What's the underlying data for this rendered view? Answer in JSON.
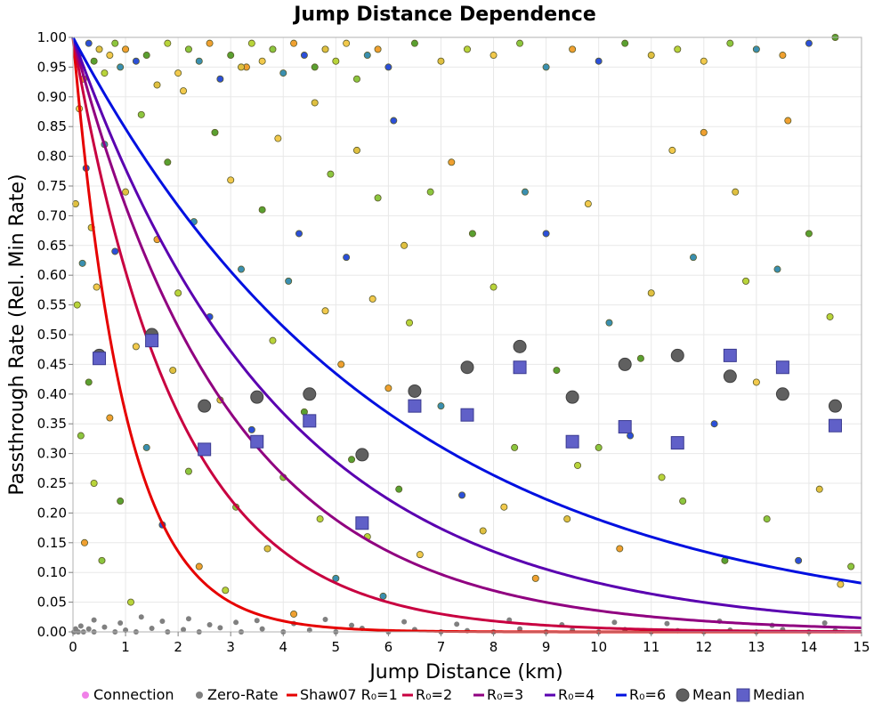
{
  "chart_data": {
    "type": "scatter",
    "title": "Jump Distance Dependence",
    "xlabel": "Jump Distance (km)",
    "ylabel": "Passthrough Rate (Rel. Min Rate)",
    "xlim": [
      0,
      15
    ],
    "ylim": [
      0,
      1
    ],
    "x_ticks": [
      "0",
      "1",
      "2",
      "3",
      "4",
      "5",
      "6",
      "7",
      "8",
      "9",
      "10",
      "11",
      "12",
      "13",
      "14",
      "15"
    ],
    "y_ticks": [
      "0.00",
      "0.05",
      "0.10",
      "0.15",
      "0.20",
      "0.25",
      "0.30",
      "0.35",
      "0.40",
      "0.45",
      "0.50",
      "0.55",
      "0.60",
      "0.65",
      "0.70",
      "0.75",
      "0.80",
      "0.85",
      "0.90",
      "0.95",
      "1.00"
    ],
    "grid": true,
    "legend_position": "bottom",
    "legend": [
      {
        "label": "Connection",
        "marker": "dot",
        "color": "#f080e8"
      },
      {
        "label": "Zero-Rate",
        "marker": "dot",
        "color": "#808080"
      },
      {
        "label": "Shaw07 R₀=1",
        "marker": "line",
        "color": "#e60000"
      },
      {
        "label": "R₀=2",
        "marker": "line",
        "color": "#c80040"
      },
      {
        "label": "R₀=3",
        "marker": "line",
        "color": "#900080"
      },
      {
        "label": "R₀=4",
        "marker": "line",
        "color": "#5a00b0"
      },
      {
        "label": "R₀=6",
        "marker": "line",
        "color": "#0010e0"
      },
      {
        "label": "Mean",
        "marker": "circle",
        "color": "#606060"
      },
      {
        "label": "Median",
        "marker": "square",
        "color": "#6060c8"
      }
    ],
    "curves": [
      {
        "name": "Shaw07 R₀=1",
        "R0": 1,
        "color": "#e60000"
      },
      {
        "name": "R₀=2",
        "R0": 2,
        "color": "#c80040"
      },
      {
        "name": "R₀=3",
        "R0": 3,
        "color": "#900080"
      },
      {
        "name": "R₀=4",
        "R0": 4,
        "color": "#5a00b0"
      },
      {
        "name": "R₀=6",
        "R0": 6,
        "color": "#0010e0"
      }
    ],
    "mean": {
      "x": [
        0.5,
        1.5,
        2.5,
        3.5,
        4.5,
        5.5,
        6.5,
        7.5,
        8.5,
        9.5,
        10.5,
        11.5,
        12.5,
        13.5,
        14.5
      ],
      "y": [
        0.465,
        0.5,
        0.38,
        0.395,
        0.4,
        0.298,
        0.405,
        0.445,
        0.48,
        0.395,
        0.45,
        0.465,
        0.43,
        0.4,
        0.38
      ]
    },
    "median": {
      "x": [
        0.5,
        1.5,
        2.5,
        3.5,
        4.5,
        5.5,
        6.5,
        7.5,
        8.5,
        9.5,
        10.5,
        11.5,
        12.5,
        13.5,
        14.5
      ],
      "y": [
        0.46,
        0.49,
        0.307,
        0.32,
        0.355,
        0.183,
        0.38,
        0.365,
        0.445,
        0.32,
        0.345,
        0.318,
        0.465,
        0.445,
        0.347
      ]
    },
    "connection_points": {
      "x": [
        0.05,
        0.08,
        0.12,
        0.15,
        0.18,
        0.22,
        0.25,
        0.3,
        0.35,
        0.4,
        0.45,
        0.55,
        0.6,
        0.7,
        0.8,
        0.9,
        1.0,
        1.1,
        1.2,
        1.3,
        1.4,
        1.6,
        1.7,
        1.8,
        1.9,
        2.0,
        2.1,
        2.2,
        2.3,
        2.4,
        2.6,
        2.7,
        2.8,
        2.9,
        3.0,
        3.1,
        3.2,
        3.3,
        3.4,
        3.6,
        3.7,
        3.8,
        3.9,
        4.0,
        4.1,
        4.2,
        4.3,
        4.4,
        4.6,
        4.7,
        4.8,
        4.9,
        5.0,
        5.1,
        5.2,
        5.3,
        5.4,
        5.6,
        5.7,
        5.8,
        5.9,
        6.0,
        6.1,
        6.2,
        6.3,
        6.4,
        6.6,
        6.8,
        7.0,
        7.2,
        7.4,
        7.6,
        7.8,
        8.0,
        8.2,
        8.4,
        8.6,
        8.8,
        9.0,
        9.2,
        9.4,
        9.6,
        9.8,
        10.0,
        10.2,
        10.4,
        10.6,
        10.8,
        11.0,
        11.2,
        11.4,
        11.6,
        11.8,
        12.0,
        12.2,
        12.4,
        12.6,
        12.8,
        13.0,
        13.2,
        13.4,
        13.6,
        13.8,
        14.0,
        14.2,
        14.4,
        14.6,
        14.8,
        0.1,
        0.2,
        0.3,
        0.4,
        0.5,
        0.6,
        0.7,
        0.8,
        0.9,
        1.0,
        1.2,
        1.4,
        1.6,
        1.8,
        2.0,
        2.2,
        2.4,
        2.6,
        2.8,
        3.0,
        3.2,
        3.4,
        3.6,
        3.8,
        4.0,
        4.2,
        4.4,
        4.6,
        4.8,
        5.0,
        5.2,
        5.4,
        5.6,
        5.8,
        6.0,
        6.5,
        7.0,
        7.5,
        8.0,
        8.5,
        9.0,
        9.5,
        10.0,
        10.5,
        11.0,
        11.5,
        12.0,
        12.5,
        13.0,
        13.5,
        14.0,
        14.5
      ],
      "y": [
        0.72,
        0.55,
        0.88,
        0.33,
        0.62,
        0.15,
        0.78,
        0.42,
        0.68,
        0.25,
        0.58,
        0.12,
        0.82,
        0.36,
        0.64,
        0.22,
        0.74,
        0.05,
        0.48,
        0.87,
        0.31,
        0.66,
        0.18,
        0.79,
        0.44,
        0.57,
        0.91,
        0.27,
        0.69,
        0.11,
        0.53,
        0.84,
        0.39,
        0.07,
        0.76,
        0.21,
        0.61,
        0.95,
        0.34,
        0.71,
        0.14,
        0.49,
        0.83,
        0.26,
        0.59,
        0.03,
        0.67,
        0.37,
        0.89,
        0.19,
        0.54,
        0.77,
        0.09,
        0.45,
        0.63,
        0.29,
        0.81,
        0.16,
        0.56,
        0.73,
        0.06,
        0.41,
        0.86,
        0.24,
        0.65,
        0.52,
        0.13,
        0.74,
        0.38,
        0.79,
        0.23,
        0.67,
        0.17,
        0.58,
        0.21,
        0.31,
        0.74,
        0.09,
        0.67,
        0.44,
        0.19,
        0.28,
        0.72,
        0.31,
        0.52,
        0.14,
        0.33,
        0.46,
        0.57,
        0.26,
        0.81,
        0.22,
        0.63,
        0.84,
        0.35,
        0.12,
        0.74,
        0.59,
        0.42,
        0.19,
        0.61,
        0.86,
        0.12,
        0.67,
        0.24,
        0.53,
        0.08,
        0.11,
        0.97,
        0.93,
        0.99,
        0.96,
        0.98,
        0.94,
        0.97,
        0.99,
        0.95,
        0.98,
        0.96,
        0.97,
        0.92,
        0.99,
        0.94,
        0.98,
        0.96,
        0.99,
        0.93,
        0.97,
        0.95,
        0.99,
        0.96,
        0.98,
        0.94,
        0.99,
        0.97,
        0.95,
        0.98,
        0.96,
        0.99,
        0.93,
        0.97,
        0.98,
        0.95,
        0.99,
        0.96,
        0.98,
        0.97,
        0.99,
        0.95,
        0.98,
        0.96,
        0.99,
        0.97,
        0.98,
        0.96,
        0.99,
        0.98,
        0.97,
        0.99,
        1.0
      ]
    },
    "zero_rate_points": {
      "x": [
        0.02,
        0.05,
        0.1,
        0.15,
        0.2,
        0.3,
        0.4,
        0.6,
        0.8,
        1.0,
        1.2,
        1.5,
        1.8,
        2.1,
        2.4,
        2.8,
        3.2,
        3.6,
        4.0,
        4.5,
        5.0,
        5.5,
        6.0,
        6.5,
        7.0,
        7.5,
        8.0,
        8.5,
        9.0,
        9.5,
        10.0,
        10.5,
        11.0,
        11.5,
        12.0,
        12.5,
        13.0,
        13.5,
        14.0,
        14.5,
        0.4,
        0.9,
        1.3,
        1.7,
        2.2,
        2.6,
        3.1,
        3.5,
        4.2,
        4.8,
        5.3,
        6.3,
        7.3,
        8.3,
        9.3,
        10.3,
        11.3,
        12.3,
        13.3,
        14.3
      ],
      "y": [
        0,
        0.005,
        0,
        0.01,
        0,
        0.005,
        0,
        0.008,
        0,
        0.003,
        0,
        0.006,
        0,
        0.004,
        0,
        0.007,
        0,
        0.005,
        0,
        0.003,
        0,
        0.006,
        0,
        0.004,
        0,
        0.002,
        0,
        0.005,
        0,
        0.003,
        0,
        0.004,
        0,
        0.002,
        0,
        0.003,
        0,
        0.004,
        0,
        0.002,
        0.02,
        0.015,
        0.025,
        0.018,
        0.022,
        0.012,
        0.016,
        0.019,
        0.014,
        0.021,
        0.011,
        0.017,
        0.013,
        0.02,
        0.012,
        0.016,
        0.014,
        0.018,
        0.011,
        0.015
      ]
    },
    "colors": {
      "grid": "#e8e8e8",
      "plot_border": "#b0b0b0"
    }
  }
}
